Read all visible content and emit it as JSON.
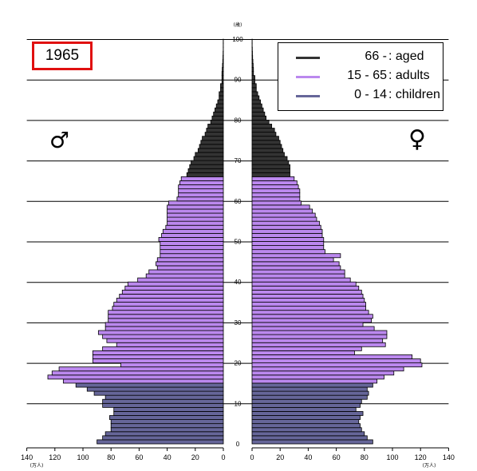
{
  "year": "1965",
  "male_symbol": "♂",
  "female_symbol": "♀",
  "legend": [
    {
      "range": "66 -",
      "label": ": aged",
      "color": "#333333"
    },
    {
      "range": "15 - 65",
      "label": ": adults",
      "color": "#bb88ee"
    },
    {
      "range": "0 - 14",
      "label": ": children",
      "color": "#666699"
    }
  ],
  "chart_data": {
    "type": "bar",
    "orientation": "horizontal-population-pyramid",
    "age_axis_unit": "(歳)",
    "count_axis_unit": "(万人)",
    "age_ticks": [
      0,
      10,
      20,
      30,
      40,
      50,
      60,
      70,
      80,
      90,
      100
    ],
    "male_ticks": [
      140,
      120,
      100,
      80,
      60,
      40,
      20,
      0
    ],
    "female_ticks": [
      0,
      20,
      40,
      60,
      80,
      100,
      120,
      140
    ],
    "xlim": [
      0,
      140
    ],
    "ylim": [
      0,
      100
    ],
    "colors": {
      "children": "#666699",
      "adults": "#bb88ee",
      "aged": "#333333"
    },
    "ages": [
      0,
      1,
      2,
      3,
      4,
      5,
      6,
      7,
      8,
      9,
      10,
      11,
      12,
      13,
      14,
      15,
      16,
      17,
      18,
      19,
      20,
      21,
      22,
      23,
      24,
      25,
      26,
      27,
      28,
      29,
      30,
      31,
      32,
      33,
      34,
      35,
      36,
      37,
      38,
      39,
      40,
      41,
      42,
      43,
      44,
      45,
      46,
      47,
      48,
      49,
      50,
      51,
      52,
      53,
      54,
      55,
      56,
      57,
      58,
      59,
      60,
      61,
      62,
      63,
      64,
      65,
      66,
      67,
      68,
      69,
      70,
      71,
      72,
      73,
      74,
      75,
      76,
      77,
      78,
      79,
      80,
      81,
      82,
      83,
      84,
      85,
      86,
      87,
      88,
      89,
      90,
      91,
      92,
      93,
      94,
      95,
      96,
      97,
      98,
      99
    ],
    "male": [
      90,
      86,
      84,
      80,
      80,
      80,
      81,
      78,
      78,
      86,
      86,
      84,
      92,
      97,
      105,
      114,
      125,
      122,
      117,
      73,
      93,
      93,
      93,
      86,
      76,
      83,
      86,
      89,
      84,
      84,
      82,
      82,
      82,
      79,
      78,
      76,
      74,
      72,
      70,
      68,
      61,
      55,
      53,
      47,
      48,
      47,
      45,
      45,
      45,
      45,
      46,
      44,
      43,
      41,
      40,
      40,
      40,
      40,
      40,
      39,
      33,
      32,
      32,
      32,
      31,
      30,
      26,
      25,
      24,
      23,
      21,
      20,
      18,
      17,
      16,
      15,
      13,
      12,
      11,
      9,
      8,
      7,
      6,
      5,
      4,
      3,
      3,
      2,
      2,
      1,
      1,
      1,
      0.8,
      0.6,
      0.4,
      0.3,
      0.2,
      0.1,
      0.1,
      0.1
    ],
    "female": [
      86,
      82,
      80,
      78,
      77,
      76,
      77,
      79,
      74,
      77,
      78,
      82,
      83,
      82,
      86,
      89,
      94,
      101,
      108,
      121,
      120,
      114,
      73,
      78,
      95,
      93,
      96,
      96,
      87,
      79,
      85,
      86,
      83,
      81,
      81,
      80,
      79,
      78,
      76,
      74,
      70,
      66,
      66,
      63,
      62,
      58,
      63,
      52,
      51,
      51,
      51,
      50,
      50,
      49,
      48,
      46,
      45,
      43,
      41,
      35,
      34,
      34,
      34,
      33,
      32,
      30,
      27,
      27,
      27,
      26,
      25,
      23,
      22,
      21,
      20,
      19,
      17,
      16,
      14,
      12,
      10,
      9,
      8,
      7,
      6,
      5,
      4,
      3,
      3,
      2,
      2,
      1,
      1,
      0.8,
      0.6,
      0.4,
      0.3,
      0.2,
      0.1,
      0.1
    ]
  }
}
